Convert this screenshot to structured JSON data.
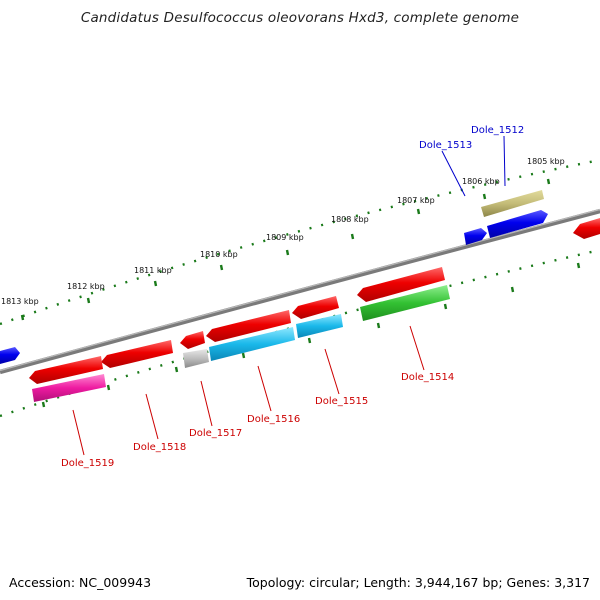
{
  "title": "Candidatus Desulfococcus oleovorans Hxd3, complete genome",
  "footer": {
    "accession": "Accession: NC_009943",
    "topology": "Topology: circular; Length: 3,944,167 bp; Genes: 3,317"
  },
  "colors": {
    "backbone": "#808080",
    "tick": "#1a7a1a",
    "label_red": "#cc0000",
    "label_blue": "#0000cc"
  },
  "kbp_labels": [
    "1805 kbp",
    "1806 kbp",
    "1807 kbp",
    "1808 kbp",
    "1809 kbp",
    "1810 kbp",
    "1811 kbp",
    "1812 kbp",
    "1813 kbp"
  ],
  "gene_labels": [
    {
      "text": "Dole_1512",
      "color": "blue"
    },
    {
      "text": "Dole_1513",
      "color": "blue"
    },
    {
      "text": "Dole_1514",
      "color": "red"
    },
    {
      "text": "Dole_1515",
      "color": "red"
    },
    {
      "text": "Dole_1516",
      "color": "red"
    },
    {
      "text": "Dole_1517",
      "color": "red"
    },
    {
      "text": "Dole_1518",
      "color": "red"
    },
    {
      "text": "Dole_1519",
      "color": "red"
    }
  ]
}
